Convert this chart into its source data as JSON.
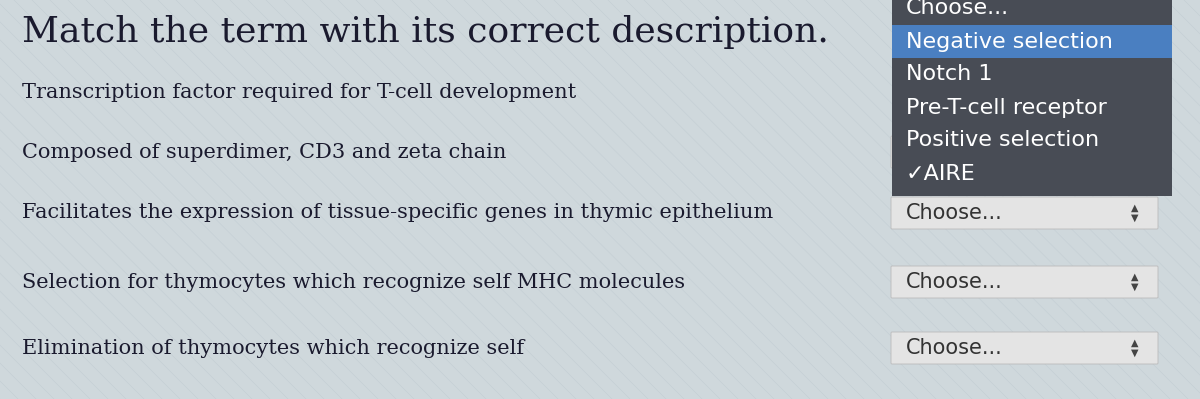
{
  "title": "Match the term with its correct description.",
  "bg_color": "#cfd8dc",
  "left_items": [
    "Transcription factor required for T-cell development",
    "Composed of superdimer, CD3 and zeta chain",
    "Facilitates the expression of tissue-specific genes in thymic epithelium",
    "Selection for thymocytes which recognize self MHC molecules",
    "Elimination of thymocytes which recognize self"
  ],
  "dropdown_label": "Choose...",
  "dropdown_bg": "#e4e4e4",
  "dropdown_border": "#bbbbbb",
  "dropdown_text_color": "#333333",
  "dropdown_menu_items": [
    "Choose...",
    "Negative selection",
    "Notch 1",
    "Pre-T-cell receptor",
    "Positive selection",
    "✓AIRE"
  ],
  "dropdown_menu_bg": "#484c55",
  "dropdown_menu_text": "#ffffff",
  "dropdown_menu_selected_bg": "#4a7fc1",
  "dropdown_menu_selected_item": "Negative selection",
  "title_fontsize": 26,
  "item_fontsize": 15,
  "dropdown_fontsize": 15,
  "menu_fontsize": 16
}
